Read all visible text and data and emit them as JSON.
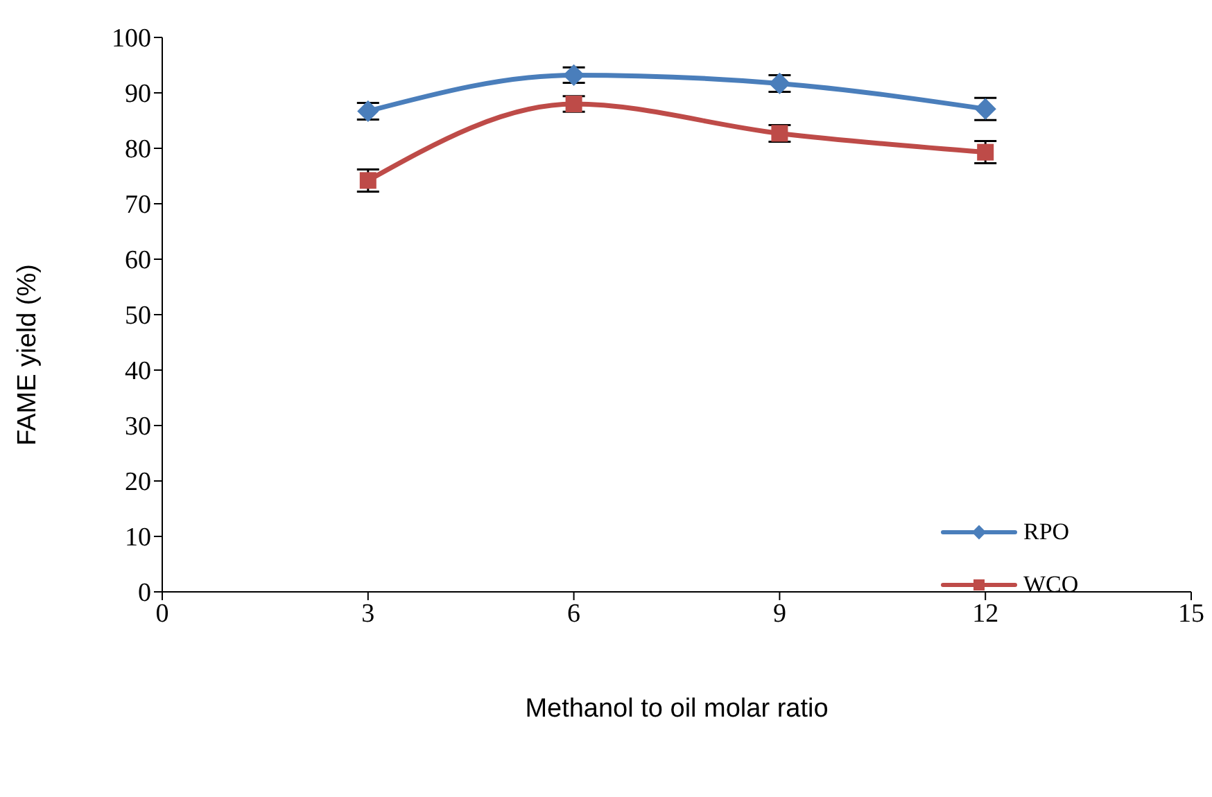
{
  "chart_data": {
    "type": "line",
    "xlabel": "Methanol to oil molar ratio",
    "ylabel": "FAME yield (%)",
    "x": [
      3,
      6,
      9,
      12
    ],
    "series": [
      {
        "name": "RPO",
        "color": "#4a7ebb",
        "marker": "diamond",
        "values": [
          86.7,
          93.2,
          91.7,
          87.1
        ],
        "errors": [
          1.5,
          1.4,
          1.5,
          2
        ]
      },
      {
        "name": "WCO",
        "color": "#be4b48",
        "marker": "square",
        "values": [
          74.2,
          88,
          82.7,
          79.3
        ],
        "errors": [
          2,
          1.4,
          1.5,
          2
        ]
      }
    ],
    "xlim": [
      0,
      15
    ],
    "xticks": [
      0,
      3,
      6,
      9,
      12,
      15
    ],
    "ylim": [
      0,
      100
    ],
    "yticks": [
      0,
      10,
      20,
      30,
      40,
      50,
      60,
      70,
      80,
      90,
      100
    ],
    "grid": false,
    "legend": "bottom right"
  }
}
